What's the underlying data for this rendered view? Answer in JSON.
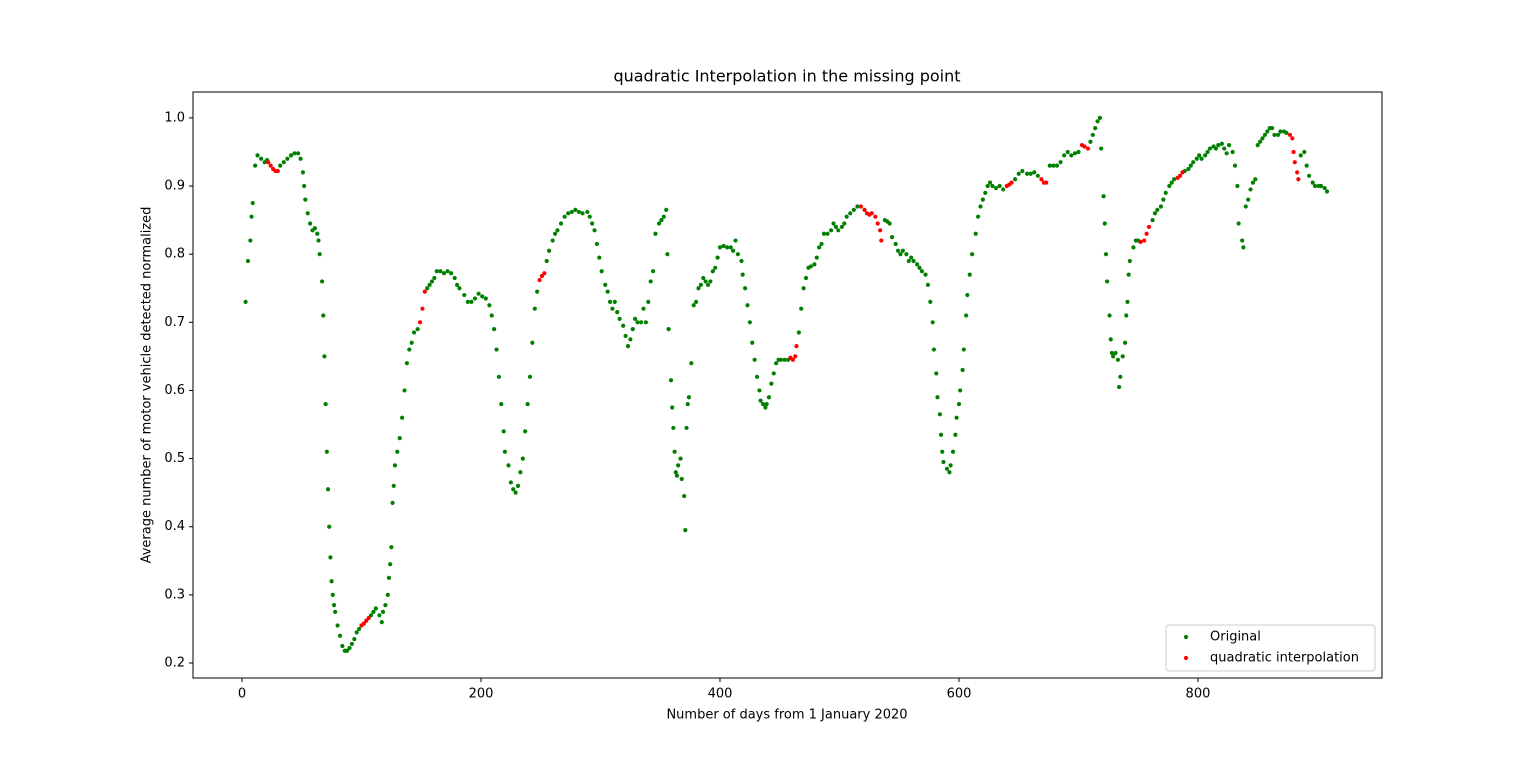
{
  "chart_data": {
    "type": "scatter",
    "title": "quadratic Interpolation in the missing point",
    "x_label": "Number of days from 1 January 2020",
    "y_label": "Average number of motor vehicle detected normalized",
    "xlim": [
      -41,
      954
    ],
    "ylim": [
      0.178,
      1.038
    ],
    "xticks": [
      0,
      200,
      400,
      600,
      800
    ],
    "yticks": [
      0.2,
      0.3,
      0.4,
      0.5,
      0.6,
      0.7,
      0.8,
      0.9,
      {
        "value": 1,
        "label": "1.0"
      }
    ],
    "grid": false,
    "legend": "lower right",
    "series": [
      {
        "name": "Original",
        "color": "#008000",
        "x": [
          3,
          5,
          7,
          8,
          9,
          11,
          13,
          16,
          19,
          21,
          32,
          35,
          38,
          41,
          44,
          47,
          49,
          51,
          52,
          53,
          55,
          57,
          59,
          61,
          63,
          64,
          65,
          67,
          68,
          69,
          70,
          71,
          72,
          73,
          74,
          75,
          76,
          77,
          78,
          80,
          82,
          84,
          86,
          88,
          90,
          92,
          94,
          96,
          98,
          108,
          110,
          112,
          115,
          117,
          118,
          120,
          122,
          123,
          124,
          125,
          126,
          127,
          128,
          130,
          132,
          134,
          136,
          138,
          140,
          142,
          144,
          147,
          155,
          157,
          159,
          161,
          163,
          166,
          169,
          172,
          175,
          178,
          180,
          182,
          186,
          189,
          192,
          195,
          198,
          201,
          204,
          207,
          209,
          211,
          213,
          215,
          217,
          219,
          220,
          223,
          225,
          227,
          229,
          231,
          233,
          235,
          237,
          239,
          241,
          243,
          245,
          247,
          255,
          257,
          260,
          262,
          264,
          267,
          270,
          273,
          276,
          279,
          282,
          285,
          289,
          291,
          293,
          295,
          297,
          299,
          301,
          304,
          306,
          308,
          310,
          312,
          314,
          316,
          319,
          321,
          323,
          325,
          327,
          329,
          331,
          334,
          336,
          338,
          340,
          342,
          344,
          346,
          349,
          351,
          353,
          355,
          356,
          357,
          359,
          360,
          361,
          362,
          363,
          364,
          365,
          367,
          368,
          370,
          371,
          372,
          373,
          374,
          376,
          378,
          380,
          382,
          384,
          386,
          388,
          390,
          392,
          394,
          396,
          398,
          400,
          403,
          406,
          409,
          411,
          413,
          415,
          418,
          419,
          421,
          423,
          425,
          427,
          429,
          431,
          433,
          434,
          436,
          438,
          439,
          441,
          443,
          445,
          447,
          449,
          451,
          454,
          457,
          466,
          468,
          470,
          472,
          474,
          476,
          479,
          481,
          483,
          485,
          487,
          490,
          493,
          495,
          497,
          499,
          502,
          504,
          506,
          509,
          512,
          515,
          538,
          540,
          542,
          544,
          547,
          549,
          551,
          553,
          556,
          558,
          560,
          562,
          565,
          567,
          569,
          572,
          574,
          576,
          578,
          579,
          581,
          582,
          584,
          585,
          586,
          587,
          590,
          592,
          593,
          595,
          597,
          598,
          600,
          601,
          603,
          604,
          606,
          607,
          609,
          611,
          614,
          616,
          618,
          620,
          622,
          624,
          626,
          628,
          631,
          634,
          637,
          647,
          650,
          653,
          657,
          660,
          663,
          666,
          676,
          679,
          682,
          685,
          688,
          691,
          694,
          697,
          700,
          710,
          712,
          714,
          716,
          718,
          719,
          721,
          722,
          723,
          724,
          726,
          727,
          728,
          729,
          731,
          733,
          734,
          735,
          737,
          739,
          740,
          741,
          742,
          743,
          746,
          748,
          750,
          762,
          764,
          766,
          769,
          771,
          773,
          776,
          778,
          780,
          789,
          792,
          794,
          796,
          799,
          801,
          803,
          806,
          808,
          810,
          813,
          815,
          817,
          820,
          822,
          824,
          826,
          829,
          831,
          833,
          834,
          837,
          838,
          840,
          842,
          844,
          846,
          848,
          850,
          852,
          854,
          856,
          858,
          860,
          862,
          864,
          867,
          869,
          872,
          874,
          886,
          889,
          891,
          893,
          896,
          898,
          901,
          903,
          906,
          908
        ],
        "values": [
          0.73,
          0.79,
          0.82,
          0.855,
          0.875,
          0.93,
          0.945,
          0.94,
          0.935,
          0.938,
          0.93,
          0.935,
          0.94,
          0.945,
          0.948,
          0.948,
          0.94,
          0.92,
          0.9,
          0.88,
          0.86,
          0.845,
          0.835,
          0.838,
          0.83,
          0.82,
          0.8,
          0.76,
          0.71,
          0.65,
          0.58,
          0.51,
          0.455,
          0.4,
          0.355,
          0.32,
          0.3,
          0.285,
          0.275,
          0.255,
          0.24,
          0.225,
          0.218,
          0.218,
          0.222,
          0.228,
          0.235,
          0.245,
          0.25,
          0.27,
          0.275,
          0.28,
          0.27,
          0.26,
          0.275,
          0.285,
          0.3,
          0.325,
          0.345,
          0.37,
          0.435,
          0.46,
          0.49,
          0.51,
          0.53,
          0.56,
          0.6,
          0.64,
          0.66,
          0.67,
          0.685,
          0.69,
          0.75,
          0.755,
          0.76,
          0.765,
          0.775,
          0.775,
          0.772,
          0.775,
          0.772,
          0.765,
          0.755,
          0.75,
          0.74,
          0.73,
          0.73,
          0.735,
          0.742,
          0.738,
          0.735,
          0.725,
          0.71,
          0.69,
          0.66,
          0.62,
          0.58,
          0.54,
          0.51,
          0.49,
          0.465,
          0.455,
          0.45,
          0.46,
          0.48,
          0.5,
          0.54,
          0.58,
          0.62,
          0.67,
          0.72,
          0.745,
          0.79,
          0.805,
          0.82,
          0.83,
          0.835,
          0.845,
          0.855,
          0.86,
          0.862,
          0.865,
          0.862,
          0.86,
          0.862,
          0.855,
          0.845,
          0.835,
          0.815,
          0.795,
          0.775,
          0.755,
          0.745,
          0.73,
          0.72,
          0.73,
          0.715,
          0.705,
          0.695,
          0.68,
          0.665,
          0.675,
          0.69,
          0.705,
          0.7,
          0.7,
          0.72,
          0.7,
          0.73,
          0.76,
          0.775,
          0.83,
          0.845,
          0.85,
          0.855,
          0.865,
          0.8,
          0.69,
          0.615,
          0.575,
          0.545,
          0.51,
          0.48,
          0.475,
          0.49,
          0.5,
          0.47,
          0.445,
          0.395,
          0.545,
          0.58,
          0.59,
          0.64,
          0.725,
          0.73,
          0.75,
          0.755,
          0.765,
          0.76,
          0.755,
          0.76,
          0.775,
          0.78,
          0.795,
          0.81,
          0.812,
          0.81,
          0.81,
          0.805,
          0.82,
          0.8,
          0.79,
          0.77,
          0.75,
          0.725,
          0.7,
          0.67,
          0.645,
          0.62,
          0.6,
          0.585,
          0.58,
          0.575,
          0.58,
          0.59,
          0.61,
          0.625,
          0.64,
          0.645,
          0.645,
          0.645,
          0.645,
          0.685,
          0.72,
          0.75,
          0.765,
          0.78,
          0.782,
          0.785,
          0.795,
          0.81,
          0.815,
          0.83,
          0.83,
          0.835,
          0.845,
          0.84,
          0.835,
          0.84,
          0.845,
          0.855,
          0.86,
          0.865,
          0.87,
          0.85,
          0.848,
          0.845,
          0.825,
          0.815,
          0.805,
          0.8,
          0.805,
          0.8,
          0.79,
          0.795,
          0.79,
          0.785,
          0.78,
          0.775,
          0.77,
          0.755,
          0.73,
          0.7,
          0.66,
          0.625,
          0.59,
          0.565,
          0.535,
          0.51,
          0.495,
          0.485,
          0.48,
          0.49,
          0.51,
          0.535,
          0.56,
          0.58,
          0.6,
          0.63,
          0.66,
          0.71,
          0.74,
          0.77,
          0.8,
          0.83,
          0.855,
          0.87,
          0.88,
          0.89,
          0.9,
          0.905,
          0.9,
          0.897,
          0.9,
          0.895,
          0.91,
          0.918,
          0.922,
          0.918,
          0.918,
          0.92,
          0.915,
          0.93,
          0.93,
          0.93,
          0.935,
          0.945,
          0.95,
          0.945,
          0.948,
          0.95,
          0.965,
          0.975,
          0.985,
          0.995,
          1.0,
          0.955,
          0.885,
          0.845,
          0.8,
          0.76,
          0.71,
          0.675,
          0.655,
          0.65,
          0.655,
          0.645,
          0.605,
          0.62,
          0.65,
          0.67,
          0.71,
          0.73,
          0.77,
          0.79,
          0.81,
          0.82,
          0.82,
          0.85,
          0.86,
          0.865,
          0.87,
          0.88,
          0.89,
          0.9,
          0.905,
          0.91,
          0.922,
          0.925,
          0.93,
          0.935,
          0.94,
          0.945,
          0.94,
          0.945,
          0.95,
          0.955,
          0.958,
          0.955,
          0.96,
          0.962,
          0.955,
          0.948,
          0.96,
          0.95,
          0.93,
          0.9,
          0.845,
          0.82,
          0.81,
          0.87,
          0.88,
          0.895,
          0.905,
          0.91,
          0.96,
          0.965,
          0.97,
          0.975,
          0.98,
          0.985,
          0.985,
          0.975,
          0.975,
          0.98,
          0.98,
          0.978,
          0.945,
          0.95,
          0.93,
          0.915,
          0.905,
          0.9,
          0.9,
          0.9,
          0.897,
          0.892
        ]
      },
      {
        "name": "quadratic interpolation",
        "color": "#ff0000",
        "x": [
          22,
          24,
          26,
          28,
          30,
          100,
          102,
          104,
          106,
          149,
          151,
          153,
          249,
          251,
          253,
          459,
          461,
          463,
          464,
          518,
          521,
          523,
          525,
          527,
          530,
          532,
          534,
          535,
          640,
          642,
          644,
          669,
          671,
          673,
          703,
          705,
          708,
          752,
          755,
          757,
          759,
          783,
          785,
          787,
          877,
          879,
          880,
          881,
          883,
          884
        ],
        "values": [
          0.935,
          0.93,
          0.925,
          0.922,
          0.922,
          0.255,
          0.258,
          0.262,
          0.266,
          0.7,
          0.72,
          0.745,
          0.762,
          0.768,
          0.772,
          0.648,
          0.645,
          0.65,
          0.665,
          0.87,
          0.865,
          0.86,
          0.858,
          0.86,
          0.855,
          0.845,
          0.835,
          0.82,
          0.9,
          0.902,
          0.905,
          0.91,
          0.905,
          0.905,
          0.96,
          0.958,
          0.955,
          0.818,
          0.82,
          0.83,
          0.84,
          0.912,
          0.915,
          0.92,
          0.975,
          0.97,
          0.95,
          0.935,
          0.92,
          0.91
        ]
      }
    ]
  }
}
